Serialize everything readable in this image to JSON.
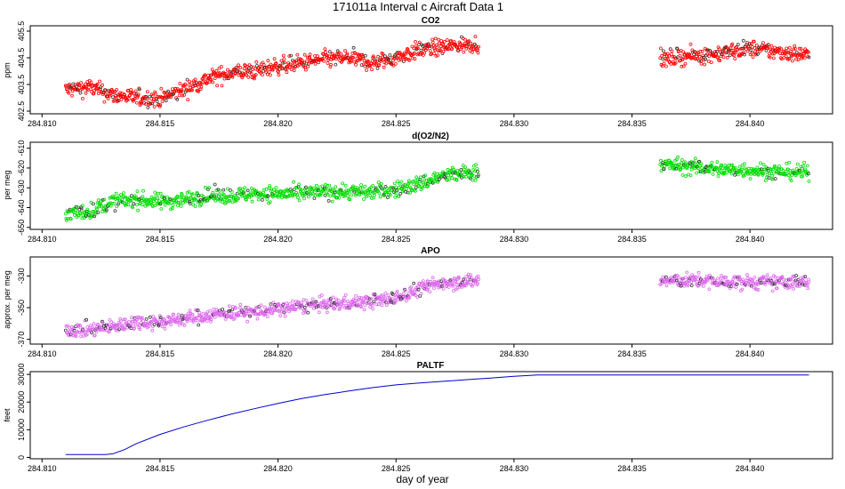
{
  "figure": {
    "title": "171011a   Interval c Aircraft Data 1",
    "xlabel": "day of year"
  },
  "chart_data": [
    {
      "type": "scatter",
      "title": "CO2",
      "ylabel": "ppm",
      "color": "#ff0000",
      "xlim": [
        284.8095,
        284.8435
      ],
      "ylim": [
        402.4,
        405.7
      ],
      "x_ticks": [
        "284.810",
        "284.815",
        "284.820",
        "284.825",
        "284.830",
        "284.835",
        "284.840"
      ],
      "y_ticks": [
        "402.5",
        "403.5",
        "404.5",
        "405.5"
      ],
      "y_tick_values": [
        402.5,
        403.5,
        404.5,
        405.5
      ],
      "segments": [
        {
          "x": [
            284.811,
            284.812,
            284.813,
            284.814,
            284.815,
            284.816,
            284.817,
            284.818,
            284.819,
            284.82,
            284.821,
            284.822,
            284.823,
            284.824,
            284.825,
            284.826,
            284.827,
            284.8285
          ],
          "y": [
            403.3,
            403.4,
            403.1,
            403.0,
            402.95,
            403.3,
            403.7,
            403.95,
            404.0,
            404.2,
            404.3,
            404.45,
            404.5,
            404.3,
            404.5,
            404.8,
            404.9,
            405.05
          ]
        },
        {
          "x": [
            284.8362,
            284.837,
            284.838,
            284.839,
            284.84,
            284.841,
            284.8425
          ],
          "y": [
            404.4,
            404.55,
            404.6,
            404.7,
            404.85,
            404.75,
            404.6
          ]
        }
      ],
      "noise": 0.22
    },
    {
      "type": "scatter",
      "title": "d(O2/N2)",
      "ylabel": "per meg",
      "color": "#00dd00",
      "xlim": [
        284.8095,
        284.8435
      ],
      "ylim": [
        -651,
        -607
      ],
      "x_ticks": [
        "284.810",
        "284.815",
        "284.820",
        "284.825",
        "284.830",
        "284.835",
        "284.840"
      ],
      "y_ticks": [
        "-650",
        "-640",
        "-630",
        "-620",
        "-610"
      ],
      "y_tick_values": [
        -650,
        -640,
        -630,
        -620,
        -610
      ],
      "segments": [
        {
          "x": [
            284.811,
            284.812,
            284.813,
            284.814,
            284.815,
            284.816,
            284.817,
            284.818,
            284.819,
            284.82,
            284.821,
            284.822,
            284.823,
            284.824,
            284.825,
            284.826,
            284.827,
            284.8285
          ],
          "y": [
            -643,
            -642,
            -637,
            -636,
            -637,
            -636,
            -634,
            -634,
            -633,
            -633,
            -633,
            -632,
            -632,
            -632,
            -631,
            -628,
            -624,
            -622
          ]
        },
        {
          "x": [
            284.8362,
            284.837,
            284.838,
            284.839,
            284.84,
            284.841,
            284.8425
          ],
          "y": [
            -618,
            -619,
            -620,
            -621,
            -621,
            -622,
            -622
          ]
        }
      ],
      "noise": 2.8
    },
    {
      "type": "scatter",
      "title": "APO",
      "ylabel": "approx. per meg",
      "color": "#dd66ee",
      "xlim": [
        284.8095,
        284.8435
      ],
      "ylim": [
        -373,
        -318
      ],
      "x_ticks": [
        "284.810",
        "284.815",
        "284.820",
        "284.825",
        "284.830",
        "284.835",
        "284.840"
      ],
      "y_ticks": [
        "-370",
        "-350",
        "-330"
      ],
      "y_tick_values": [
        -370,
        -350,
        -330
      ],
      "segments": [
        {
          "x": [
            284.811,
            284.812,
            284.813,
            284.814,
            284.815,
            284.816,
            284.817,
            284.818,
            284.819,
            284.82,
            284.821,
            284.822,
            284.823,
            284.824,
            284.825,
            284.826,
            284.827,
            284.8285
          ],
          "y": [
            -364,
            -364,
            -362,
            -359,
            -359,
            -357,
            -355,
            -353,
            -353,
            -351,
            -349,
            -348,
            -347,
            -346,
            -344,
            -338,
            -334,
            -333
          ]
        },
        {
          "x": [
            284.8362,
            284.837,
            284.838,
            284.839,
            284.84,
            284.841,
            284.8425
          ],
          "y": [
            -333,
            -333,
            -333,
            -334,
            -334,
            -334,
            -334
          ]
        }
      ],
      "noise": 3.2
    },
    {
      "type": "line",
      "title": "PALTF",
      "ylabel": "feet",
      "color": "#0000cc",
      "xlim": [
        284.8095,
        284.8435
      ],
      "ylim": [
        -500,
        31000
      ],
      "x_ticks": [
        "284.810",
        "284.815",
        "284.820",
        "284.825",
        "284.830",
        "284.835",
        "284.840"
      ],
      "y_ticks": [
        "0",
        "10000",
        "20000",
        "30000"
      ],
      "y_tick_values": [
        0,
        10000,
        20000,
        30000
      ],
      "x": [
        284.811,
        284.812,
        284.8127,
        284.813,
        284.8135,
        284.814,
        284.815,
        284.816,
        284.817,
        284.818,
        284.819,
        284.82,
        284.821,
        284.822,
        284.823,
        284.824,
        284.825,
        284.826,
        284.827,
        284.828,
        284.829,
        284.83,
        284.831,
        284.835,
        284.84,
        284.8425
      ],
      "y": [
        1000,
        1000,
        1000,
        1300,
        2800,
        5000,
        8300,
        11000,
        13400,
        15600,
        17600,
        19500,
        21300,
        22700,
        24000,
        25200,
        26200,
        26900,
        27500,
        28100,
        28700,
        29300,
        29800,
        29800,
        29800,
        29800
      ]
    }
  ]
}
